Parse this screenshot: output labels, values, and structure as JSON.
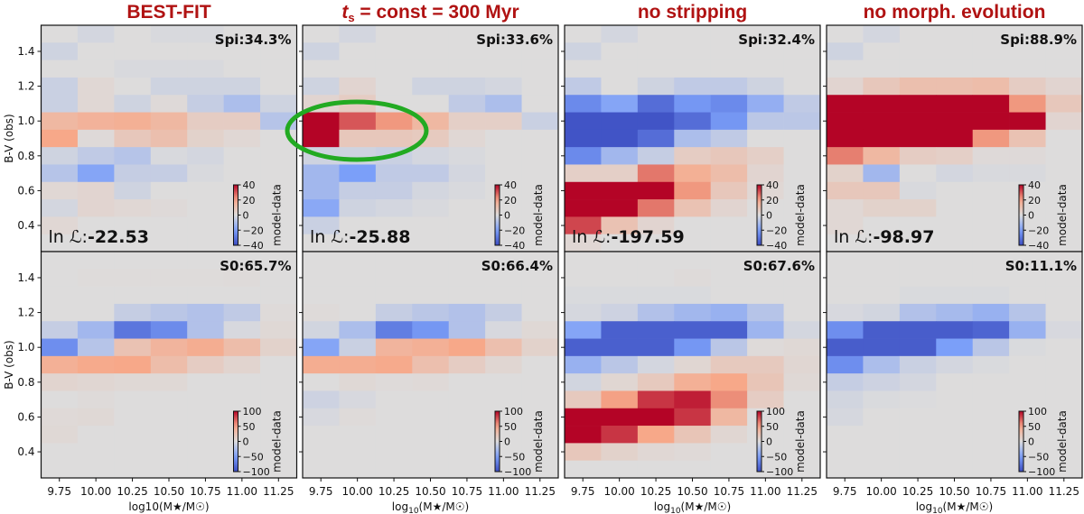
{
  "chart_data": {
    "type": "heatmap",
    "xlabel": "log10(M★/M☉)",
    "xlabel_parts": {
      "pre": "log",
      "sub": "10",
      "post": "(M★/M☉)"
    },
    "ylabel": "B-V (obs)",
    "xlim": [
      9.625,
      11.375
    ],
    "ylim": [
      0.25,
      1.55
    ],
    "x_bins": [
      9.75,
      10.0,
      10.25,
      10.5,
      10.75,
      11.0,
      11.25
    ],
    "y_bins": [
      1.5,
      1.4,
      1.3,
      1.2,
      1.1,
      1.0,
      0.9,
      0.8,
      0.7,
      0.6,
      0.5,
      0.4,
      0.3
    ],
    "x_ticks": [
      "9.75",
      "10.00",
      "10.25",
      "10.50",
      "10.75",
      "11.00",
      "11.25"
    ],
    "x_tick_values": [
      9.75,
      10.0,
      10.25,
      10.5,
      10.75,
      11.0,
      11.25
    ],
    "y_ticks": [
      "1.4",
      "1.2",
      "1.0",
      "0.8",
      "0.6",
      "0.4"
    ],
    "y_tick_values": [
      1.4,
      1.2,
      1.0,
      0.8,
      0.6,
      0.4
    ],
    "colorbar_label": "model-data",
    "colormap": "coolwarm",
    "colormap_stops": [
      "#3b4cc0",
      "#7b9ff9",
      "#dddcdc",
      "#f7a889",
      "#b40426"
    ],
    "annotation_color": "#22aa22",
    "columns": [
      {
        "title": "BEST-FIT"
      },
      {
        "title_var": "t",
        "title_sub": "s",
        "title": " = const = 300 Myr"
      },
      {
        "title": "no stripping"
      },
      {
        "title": "no morph. evolution"
      }
    ],
    "panels": [
      {
        "row": 0,
        "col": 0,
        "fraction_label": "Spi:34.3%",
        "loglike_prefix": "ln ℒ:",
        "loglike_value": "-22.53",
        "clim": [
          -40,
          40
        ],
        "cbar_ticks": [
          "40",
          "20",
          "0",
          "−20",
          "−40"
        ],
        "cbar_tick_values": [
          40,
          20,
          0,
          -20,
          -40
        ],
        "values": [
          [
            0,
            -2,
            0,
            -1,
            -1,
            0,
            0
          ],
          [
            -3,
            0,
            0,
            0,
            0,
            0,
            0
          ],
          [
            0,
            0,
            -1,
            -1,
            -1,
            0,
            0
          ],
          [
            -4,
            2,
            0,
            -3,
            -3,
            -3,
            0
          ],
          [
            -4,
            2,
            -3,
            1,
            -5,
            -10,
            -3
          ],
          [
            14,
            16,
            17,
            14,
            6,
            6,
            -8
          ],
          [
            20,
            1,
            8,
            11,
            4,
            2,
            0
          ],
          [
            -3,
            -6,
            -8,
            -1,
            -2,
            0,
            0
          ],
          [
            -8,
            -18,
            -5,
            -5,
            -1,
            0,
            0
          ],
          [
            2,
            3,
            -3,
            0,
            0,
            0,
            0
          ],
          [
            -2,
            3,
            2,
            1,
            0,
            0,
            0
          ],
          [
            2,
            0,
            0,
            0,
            0,
            0,
            0
          ],
          [
            0,
            0,
            0,
            0,
            0,
            0,
            0
          ]
        ]
      },
      {
        "row": 0,
        "col": 1,
        "fraction_label": "Spi:33.6%",
        "loglike_prefix": "ln ℒ:",
        "loglike_value": "-25.88",
        "clim": [
          -40,
          40
        ],
        "cbar_ticks": [
          "40",
          "20",
          "0",
          "−20",
          "−40"
        ],
        "cbar_tick_values": [
          40,
          20,
          0,
          -20,
          -40
        ],
        "highlight_ellipse": true,
        "values": [
          [
            0,
            -2,
            0,
            0,
            0,
            0,
            0
          ],
          [
            -3,
            0,
            0,
            0,
            0,
            0,
            0
          ],
          [
            0,
            0,
            0,
            0,
            0,
            0,
            0
          ],
          [
            -3,
            3,
            0,
            -3,
            -3,
            -2,
            0
          ],
          [
            3,
            6,
            0,
            0,
            -6,
            -10,
            0
          ],
          [
            45,
            30,
            22,
            14,
            5,
            5,
            -4
          ],
          [
            45,
            8,
            8,
            7,
            2,
            0,
            0
          ],
          [
            -3,
            -3,
            -4,
            -2,
            -1,
            0,
            0
          ],
          [
            -12,
            -20,
            -6,
            -6,
            -2,
            0,
            0
          ],
          [
            -12,
            -5,
            -5,
            -2,
            -1,
            0,
            0
          ],
          [
            -17,
            -3,
            -2,
            -1,
            0,
            0,
            0
          ],
          [
            -4,
            0,
            0,
            0,
            0,
            0,
            0
          ],
          [
            0,
            0,
            0,
            0,
            0,
            0,
            0
          ]
        ]
      },
      {
        "row": 0,
        "col": 2,
        "fraction_label": "Spi:32.4%",
        "loglike_prefix": "ln ℒ:",
        "loglike_value": "-197.59",
        "clim": [
          -40,
          40
        ],
        "cbar_ticks": [
          "40",
          "20",
          "0",
          "−20",
          "−40"
        ],
        "cbar_tick_values": [
          40,
          20,
          0,
          -20,
          -40
        ],
        "values": [
          [
            0,
            -2,
            0,
            0,
            0,
            0,
            0
          ],
          [
            -3,
            0,
            0,
            0,
            0,
            0,
            0
          ],
          [
            0,
            0,
            0,
            0,
            0,
            0,
            0
          ],
          [
            -6,
            0,
            -3,
            -6,
            -6,
            -3,
            0
          ],
          [
            -25,
            -18,
            -32,
            -22,
            -25,
            -15,
            -6
          ],
          [
            -38,
            -38,
            -38,
            -32,
            -22,
            -7,
            -7
          ],
          [
            -38,
            -38,
            -32,
            -10,
            -6,
            0,
            0
          ],
          [
            -25,
            -12,
            -5,
            6,
            8,
            5,
            0
          ],
          [
            5,
            5,
            26,
            17,
            12,
            3,
            0
          ],
          [
            45,
            45,
            45,
            22,
            8,
            2,
            0
          ],
          [
            45,
            45,
            26,
            10,
            3,
            0,
            0
          ],
          [
            32,
            10,
            3,
            0,
            0,
            0,
            0
          ],
          [
            2,
            0,
            0,
            0,
            0,
            0,
            0
          ]
        ]
      },
      {
        "row": 0,
        "col": 3,
        "fraction_label": "Spi:88.9%",
        "loglike_prefix": "ln ℒ:",
        "loglike_value": "-98.97",
        "clim": [
          -40,
          40
        ],
        "cbar_ticks": [
          "40",
          "20",
          "0",
          "−20",
          "−40"
        ],
        "cbar_tick_values": [
          40,
          20,
          0,
          -20,
          -40
        ],
        "values": [
          [
            0,
            -2,
            0,
            0,
            0,
            0,
            0
          ],
          [
            -3,
            0,
            0,
            0,
            0,
            0,
            0
          ],
          [
            0,
            0,
            0,
            0,
            0,
            0,
            0
          ],
          [
            3,
            8,
            11,
            11,
            12,
            6,
            3
          ],
          [
            45,
            45,
            45,
            45,
            45,
            22,
            8
          ],
          [
            45,
            45,
            45,
            45,
            45,
            45,
            3
          ],
          [
            45,
            45,
            45,
            45,
            22,
            10,
            0
          ],
          [
            25,
            14,
            6,
            5,
            1,
            1,
            0
          ],
          [
            4,
            -12,
            0,
            -2,
            -1,
            -1,
            0
          ],
          [
            8,
            8,
            -1,
            0,
            0,
            0,
            0
          ],
          [
            2,
            4,
            4,
            0,
            0,
            0,
            0
          ],
          [
            2,
            0,
            0,
            0,
            0,
            0,
            0
          ],
          [
            0,
            0,
            0,
            0,
            0,
            0,
            0
          ]
        ]
      },
      {
        "row": 1,
        "col": 0,
        "fraction_label": "S0:65.7%",
        "clim": [
          -100,
          100
        ],
        "cbar_ticks": [
          "100",
          "50",
          "0",
          "−50",
          "−100"
        ],
        "cbar_tick_values": [
          100,
          50,
          0,
          -50,
          -100
        ],
        "values": [
          [
            0,
            0,
            0,
            0,
            0,
            0,
            0
          ],
          [
            0,
            1,
            1,
            1,
            1,
            2,
            0
          ],
          [
            0,
            0,
            0,
            0,
            0,
            0,
            0
          ],
          [
            0,
            0,
            -12,
            -18,
            -22,
            -15,
            2
          ],
          [
            -12,
            -30,
            -75,
            -62,
            -22,
            -3,
            4
          ],
          [
            -60,
            -20,
            25,
            38,
            45,
            30,
            10
          ],
          [
            42,
            48,
            50,
            30,
            15,
            8,
            0
          ],
          [
            8,
            6,
            4,
            4,
            0,
            0,
            0
          ],
          [
            0,
            2,
            0,
            0,
            0,
            0,
            0
          ],
          [
            3,
            4,
            0,
            0,
            0,
            0,
            0
          ],
          [
            4,
            0,
            0,
            0,
            0,
            0,
            0
          ],
          [
            0,
            0,
            0,
            0,
            0,
            0,
            0
          ],
          [
            0,
            0,
            0,
            0,
            0,
            0,
            0
          ]
        ]
      },
      {
        "row": 1,
        "col": 1,
        "fraction_label": "S0:66.4%",
        "clim": [
          -100,
          100
        ],
        "cbar_ticks": [
          "100",
          "50",
          "0",
          "−50",
          "−100"
        ],
        "cbar_tick_values": [
          100,
          50,
          0,
          -50,
          -100
        ],
        "values": [
          [
            0,
            0,
            0,
            0,
            0,
            0,
            0
          ],
          [
            0,
            0,
            0,
            0,
            0,
            0,
            0
          ],
          [
            0,
            0,
            0,
            0,
            0,
            0,
            0
          ],
          [
            2,
            0,
            -12,
            -18,
            -22,
            -12,
            0
          ],
          [
            -6,
            -25,
            -70,
            -55,
            -22,
            -3,
            4
          ],
          [
            -45,
            -10,
            38,
            42,
            50,
            28,
            10
          ],
          [
            45,
            45,
            48,
            28,
            15,
            6,
            0
          ],
          [
            0,
            4,
            2,
            3,
            0,
            0,
            0
          ],
          [
            -8,
            -3,
            0,
            0,
            0,
            0,
            0
          ],
          [
            -3,
            2,
            0,
            0,
            0,
            0,
            0
          ],
          [
            0,
            0,
            0,
            0,
            0,
            0,
            0
          ],
          [
            0,
            0,
            0,
            0,
            0,
            0,
            0
          ],
          [
            0,
            0,
            0,
            0,
            0,
            0,
            0
          ]
        ]
      },
      {
        "row": 1,
        "col": 2,
        "fraction_label": "S0:67.6%",
        "clim": [
          -100,
          100
        ],
        "cbar_ticks": [
          "100",
          "50",
          "0",
          "−50",
          "−100"
        ],
        "cbar_tick_values": [
          100,
          50,
          0,
          -50,
          -100
        ],
        "values": [
          [
            0,
            0,
            0,
            0,
            0,
            0,
            0
          ],
          [
            0,
            0,
            0,
            2,
            0,
            0,
            0
          ],
          [
            -2,
            -2,
            -2,
            -2,
            0,
            0,
            0
          ],
          [
            -4,
            -8,
            -22,
            -30,
            -35,
            -20,
            0
          ],
          [
            -45,
            -88,
            -88,
            -88,
            -88,
            -32,
            -5
          ],
          [
            -88,
            -88,
            -88,
            -55,
            -18,
            2,
            4
          ],
          [
            -35,
            -18,
            -5,
            6,
            18,
            18,
            6
          ],
          [
            -6,
            6,
            18,
            42,
            50,
            22,
            4
          ],
          [
            18,
            52,
            85,
            92,
            58,
            15,
            0
          ],
          [
            110,
            110,
            110,
            85,
            35,
            0,
            0
          ],
          [
            110,
            85,
            50,
            22,
            6,
            0,
            0
          ],
          [
            20,
            10,
            5,
            3,
            0,
            0,
            0
          ],
          [
            0,
            0,
            0,
            0,
            0,
            0,
            0
          ]
        ]
      },
      {
        "row": 1,
        "col": 3,
        "fraction_label": "S0:11.1%",
        "clim": [
          -100,
          100
        ],
        "cbar_ticks": [
          "100",
          "50",
          "0",
          "−50",
          "−100"
        ],
        "cbar_tick_values": [
          100,
          50,
          0,
          -50,
          -100
        ],
        "values": [
          [
            0,
            0,
            0,
            0,
            0,
            0,
            0
          ],
          [
            0,
            0,
            0,
            0,
            0,
            0,
            0
          ],
          [
            0,
            0,
            -2,
            -2,
            -2,
            0,
            0
          ],
          [
            -3,
            -6,
            -22,
            -28,
            -35,
            -20,
            0
          ],
          [
            -60,
            -90,
            -90,
            -90,
            -85,
            -35,
            -3
          ],
          [
            -90,
            -90,
            -90,
            -50,
            -18,
            -2,
            0
          ],
          [
            -60,
            -25,
            -10,
            -5,
            -2,
            0,
            0
          ],
          [
            -12,
            -8,
            -5,
            0,
            0,
            0,
            0
          ],
          [
            -6,
            -2,
            -1,
            0,
            0,
            0,
            0
          ],
          [
            -4,
            0,
            0,
            0,
            0,
            0,
            0
          ],
          [
            0,
            0,
            0,
            0,
            0,
            0,
            0
          ],
          [
            0,
            0,
            0,
            0,
            0,
            0,
            0
          ],
          [
            0,
            0,
            0,
            0,
            0,
            0,
            0
          ]
        ]
      }
    ]
  }
}
